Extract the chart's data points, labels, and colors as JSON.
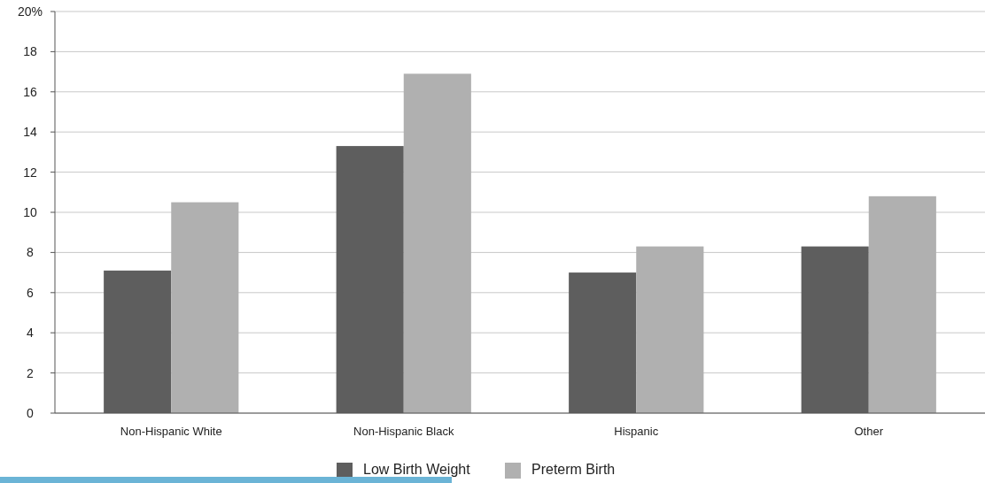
{
  "chart_data": {
    "type": "bar",
    "categories": [
      "Non-Hispanic White",
      "Non-Hispanic Black",
      "Hispanic",
      "Other"
    ],
    "series": [
      {
        "name": "Low Birth Weight",
        "color": "#5e5e5e",
        "values": [
          7.1,
          13.3,
          7.0,
          8.3
        ]
      },
      {
        "name": "Preterm Birth",
        "color": "#b0b0b0",
        "values": [
          10.5,
          16.9,
          8.3,
          10.8
        ]
      }
    ],
    "ylim": [
      0,
      20
    ],
    "yticks": [
      0,
      2,
      4,
      6,
      8,
      10,
      12,
      14,
      16,
      18,
      {
        "value": 20,
        "label": "20%"
      }
    ],
    "grid": "y",
    "legend": "bottom"
  }
}
